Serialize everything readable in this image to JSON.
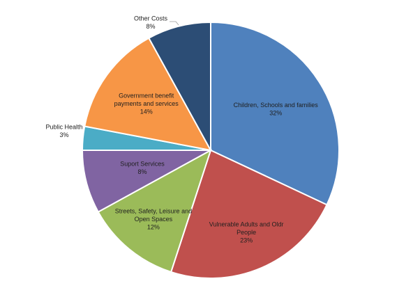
{
  "chart_data": {
    "type": "pie",
    "title": "",
    "start": "12 o'clock",
    "direction": "clockwise",
    "legend": "none",
    "slices": [
      {
        "label": "Children, Schools and families",
        "lines": [
          "Children, Schools and families"
        ],
        "value": 32,
        "display": "32%",
        "color": "#4f81bd",
        "label_place": "inside"
      },
      {
        "label": "Vulnerable Adults and Oldr People",
        "lines": [
          "Vulnerable Adults and Oldr",
          "People"
        ],
        "value": 23,
        "display": "23%",
        "color": "#c0504d",
        "label_place": "inside"
      },
      {
        "label": "Streets, Safety, Leisure and Open Spaces",
        "lines": [
          "Streets, Safety, Leisure and",
          "Open Spaces"
        ],
        "value": 12,
        "display": "12%",
        "color": "#9bbb59",
        "label_place": "inside"
      },
      {
        "label": "Suport Services",
        "lines": [
          "Suport Services"
        ],
        "value": 8,
        "display": "8%",
        "color": "#8064a2",
        "label_place": "inside"
      },
      {
        "label": "Public Health",
        "lines": [
          "Public Health"
        ],
        "value": 3,
        "display": "3%",
        "color": "#4bacc6",
        "label_place": "outside-left"
      },
      {
        "label": "Government benefit payments and services",
        "lines": [
          "Government benefit",
          "payments and services"
        ],
        "value": 14,
        "display": "14%",
        "color": "#f79646",
        "label_place": "inside"
      },
      {
        "label": "Other Costs",
        "lines": [
          "Other Costs"
        ],
        "value": 8,
        "display": "8%",
        "color": "#2c4d75",
        "label_place": "outside-top"
      }
    ]
  }
}
